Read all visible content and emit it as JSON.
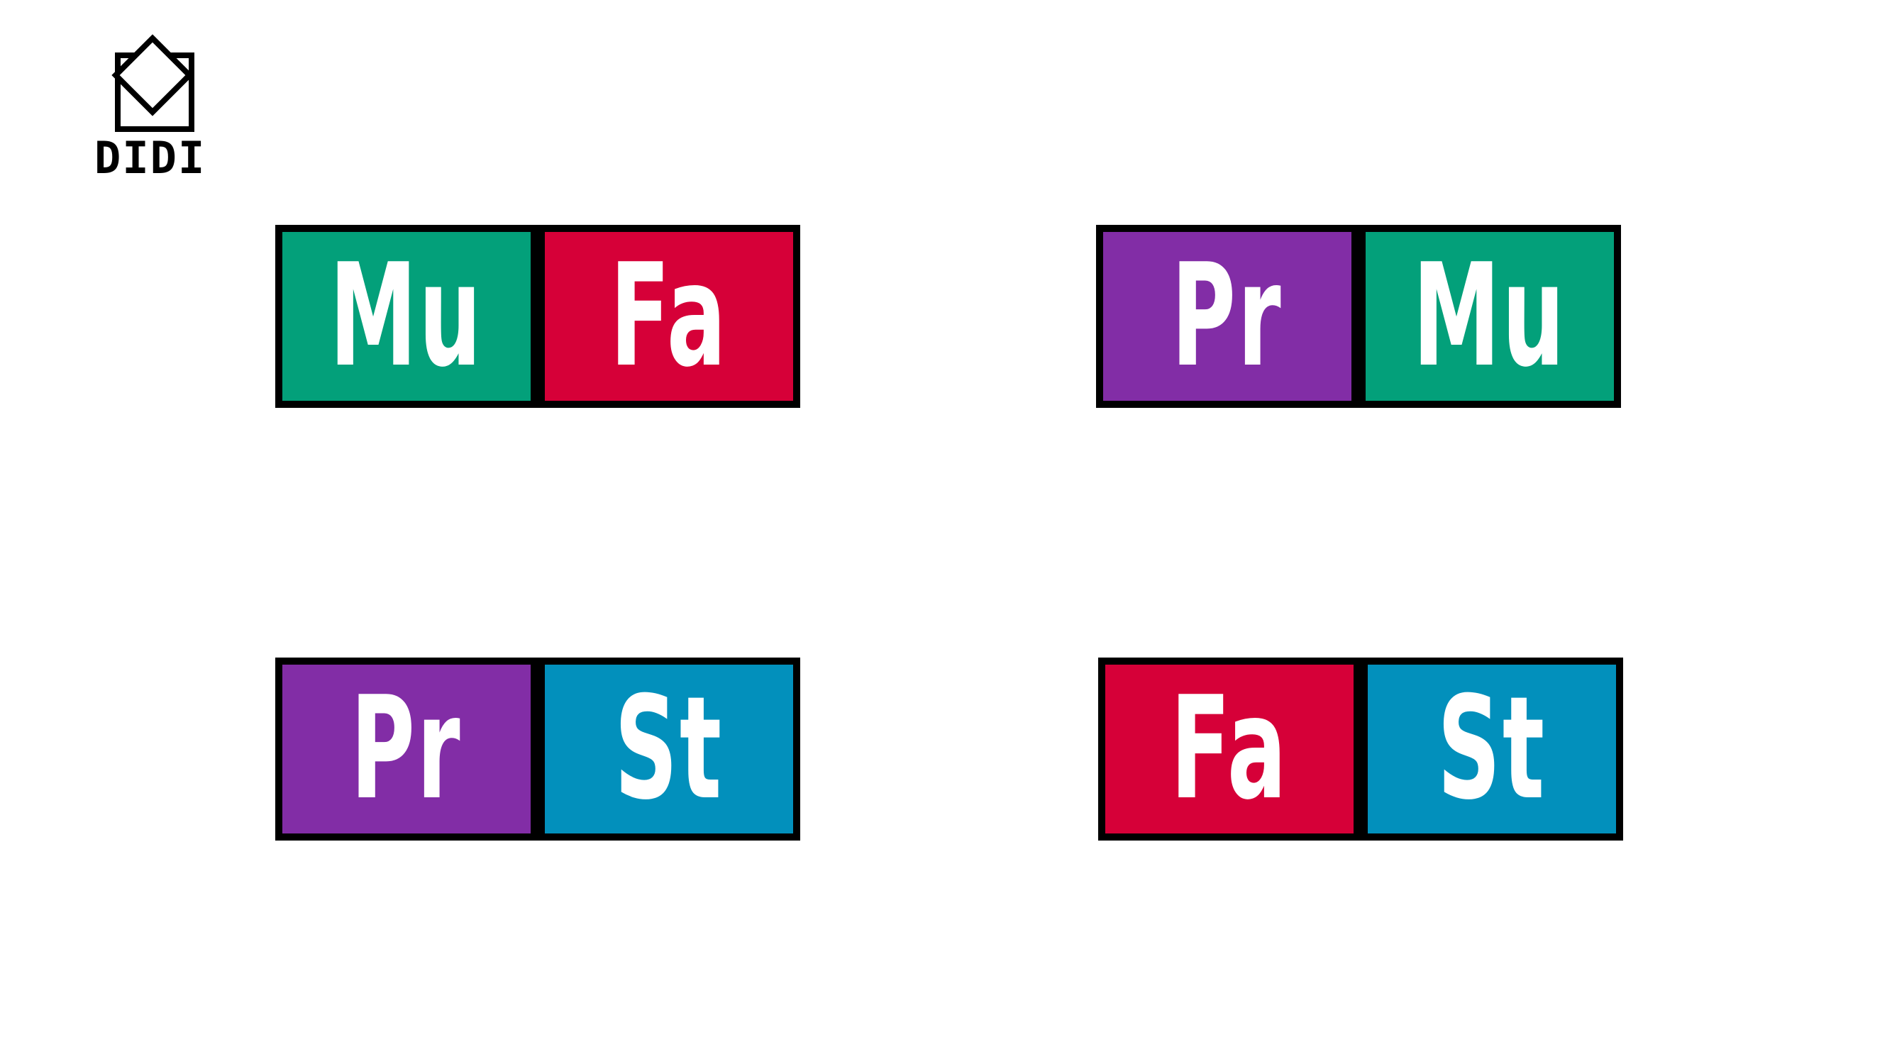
{
  "logo": {
    "text": "DIDI",
    "icon": "diamond-square-logo-icon"
  },
  "colors": {
    "Mu": "#03A07A",
    "Fa": "#D60038",
    "Pr": "#822DA6",
    "St": "#0290BC",
    "border": "#000000",
    "text": "#FFFFFF"
  },
  "pairs": [
    {
      "tiles": [
        {
          "label": "Mu",
          "color": "#03A07A"
        },
        {
          "label": "Fa",
          "color": "#D60038"
        }
      ]
    },
    {
      "tiles": [
        {
          "label": "Pr",
          "color": "#822DA6"
        },
        {
          "label": "Mu",
          "color": "#03A07A"
        }
      ]
    },
    {
      "tiles": [
        {
          "label": "Pr",
          "color": "#822DA6"
        },
        {
          "label": "St",
          "color": "#0290BC"
        }
      ]
    },
    {
      "tiles": [
        {
          "label": "Fa",
          "color": "#D60038"
        },
        {
          "label": "St",
          "color": "#0290BC"
        }
      ]
    }
  ]
}
